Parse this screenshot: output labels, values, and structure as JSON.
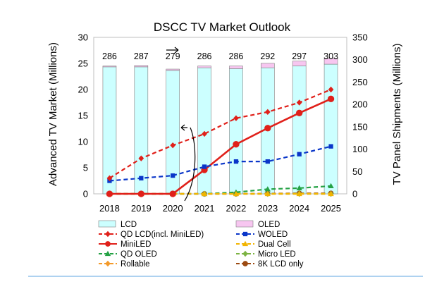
{
  "chart_data": {
    "type": "bar+line",
    "title": "DSCC TV Market Outlook",
    "categories": [
      "2018",
      "2019",
      "2020",
      "2021",
      "2022",
      "2023",
      "2024",
      "2025"
    ],
    "y_left": {
      "label": "Advanced TV Market (Millions)",
      "min": 0,
      "max": 30,
      "step": 5,
      "ticks": [
        "0",
        "5",
        "10",
        "15",
        "20",
        "25",
        "30"
      ]
    },
    "y_right": {
      "label": "TV Panel Shipments (Millions)",
      "min": 0,
      "max": 350,
      "step": 50,
      "ticks": [
        "0",
        "50",
        "100",
        "150",
        "200",
        "250",
        "300",
        "350"
      ]
    },
    "totals": [
      "286",
      "287",
      "279",
      "286",
      "286",
      "292",
      "297",
      "303"
    ],
    "bars": [
      {
        "name": "LCD",
        "axis": "right",
        "color": "#CCFFFF",
        "values": [
          284,
          284,
          276,
          282,
          280,
          282,
          286,
          290
        ]
      },
      {
        "name": "OLED",
        "axis": "right",
        "color": "#F7C6F0",
        "values": [
          2,
          3,
          3,
          4,
          6,
          10,
          11,
          13
        ]
      }
    ],
    "lines": [
      {
        "name": "QD LCD(incl. MiniLED)",
        "axis": "left",
        "color": "#E0201A",
        "dash": true,
        "marker": "diamond",
        "values": [
          3.0,
          6.8,
          9.3,
          11.5,
          14.5,
          15.7,
          17.5,
          20.0
        ]
      },
      {
        "name": "WOLED",
        "axis": "left",
        "color": "#0A36C9",
        "dash": true,
        "marker": "square",
        "values": [
          2.5,
          3.0,
          3.5,
          5.2,
          6.2,
          6.2,
          7.6,
          9.1
        ]
      },
      {
        "name": "MiniLED",
        "axis": "left",
        "color": "#E0201A",
        "dash": false,
        "marker": "circle",
        "values": [
          0,
          0,
          0,
          4.6,
          9.5,
          12.6,
          15.5,
          18.2
        ]
      },
      {
        "name": "Dual Cell",
        "axis": "left",
        "color": "#F2B400",
        "dash": true,
        "marker": "triangle",
        "values": [
          0,
          0,
          0,
          0,
          0,
          0,
          0,
          0
        ]
      },
      {
        "name": "QD OLED",
        "axis": "left",
        "color": "#25A245",
        "dash": true,
        "marker": "triangle",
        "values": [
          0,
          0,
          0,
          0,
          0.3,
          0.9,
          1.1,
          1.5
        ]
      },
      {
        "name": "Micro LED",
        "axis": "left",
        "color": "#7CB342",
        "dash": true,
        "marker": "diamond",
        "values": [
          0,
          0,
          0,
          0,
          0,
          0,
          0,
          0
        ]
      },
      {
        "name": "Rollable",
        "axis": "left",
        "color": "#F39A2B",
        "dash": true,
        "marker": "diamond",
        "values": [
          0,
          0,
          0,
          0,
          0,
          0,
          0,
          0
        ]
      },
      {
        "name": "8K LCD only",
        "axis": "left",
        "color": "#9C4A12",
        "dash": true,
        "marker": "circle",
        "values": [
          0,
          0,
          0,
          0,
          0,
          0.05,
          0.1,
          0.1
        ]
      }
    ],
    "legend": [
      {
        "label": "LCD",
        "kind": "box",
        "color": "#CCFFFF"
      },
      {
        "label": "OLED",
        "kind": "box",
        "color": "#F7C6F0"
      },
      {
        "label": "QD LCD(incl. MiniLED)",
        "kind": "line",
        "color": "#E0201A",
        "dash": true,
        "marker": "diamond"
      },
      {
        "label": "WOLED",
        "kind": "line",
        "color": "#0A36C9",
        "dash": true,
        "marker": "square"
      },
      {
        "label": "MiniLED",
        "kind": "line",
        "color": "#E0201A",
        "dash": false,
        "marker": "circle"
      },
      {
        "label": "Dual Cell",
        "kind": "line",
        "color": "#F2B400",
        "dash": true,
        "marker": "triangle"
      },
      {
        "label": "QD OLED",
        "kind": "line",
        "color": "#25A245",
        "dash": true,
        "marker": "triangle"
      },
      {
        "label": "Micro LED",
        "kind": "line",
        "color": "#7CB342",
        "dash": true,
        "marker": "diamond"
      },
      {
        "label": "Rollable",
        "kind": "line",
        "color": "#F39A2B",
        "dash": true,
        "marker": "diamond"
      },
      {
        "label": "8K LCD only",
        "kind": "line",
        "color": "#9C4A12",
        "dash": true,
        "marker": "circle"
      }
    ],
    "footer_rule_color": "#7DB8E8"
  }
}
